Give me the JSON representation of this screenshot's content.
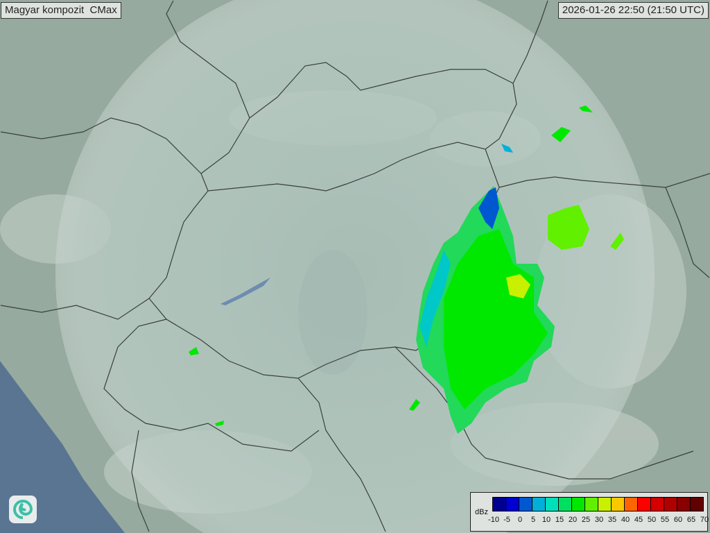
{
  "title": "Magyar kompozit  CMax",
  "timestamp": "2026-01-26 22:50 (21:50 UTC)",
  "legend": {
    "unit": "dBz",
    "ticks": [
      "-10",
      "-5",
      "0",
      "5",
      "10",
      "15",
      "20",
      "25",
      "30",
      "35",
      "40",
      "45",
      "50",
      "55",
      "60",
      "65",
      "70"
    ],
    "colors": [
      "#000090",
      "#0000d0",
      "#0058d0",
      "#00b0d8",
      "#00e0b8",
      "#00e060",
      "#00e800",
      "#60f000",
      "#c8f000",
      "#f8c800",
      "#ff6400",
      "#ff0000",
      "#d40000",
      "#b00000",
      "#880000",
      "#600000"
    ]
  },
  "logo": {
    "icon": "swirl-logo-icon"
  }
}
